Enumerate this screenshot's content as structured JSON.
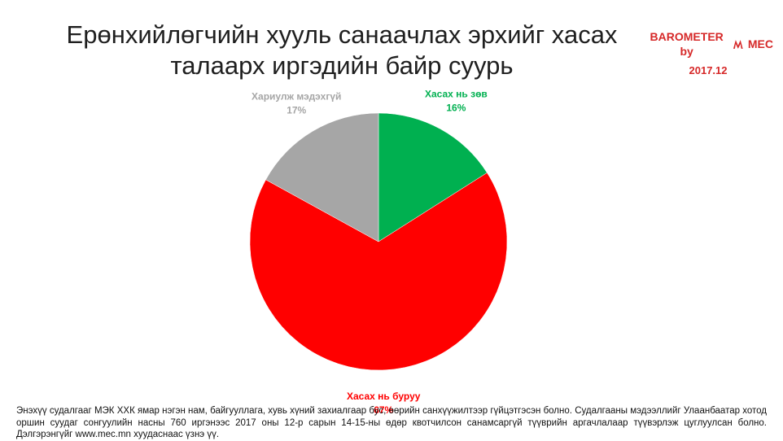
{
  "chart_data": {
    "type": "pie",
    "title_line1": "Ерөнхийлөгчийн хууль санаачлах эрхийг хасах",
    "title_line2": "талаарх иргэдийн байр суурь",
    "slices": [
      {
        "label": "Хасах нь зөв",
        "value": 16,
        "value_text": "16%",
        "color": "#00b050"
      },
      {
        "label": "Хасах нь буруу",
        "value": 67,
        "value_text": "67%",
        "color": "#ff0000"
      },
      {
        "label": "Хариулж мэдэхгүй",
        "value": 17,
        "value_text": "17%",
        "color": "#a6a6a6"
      }
    ]
  },
  "brand": {
    "name": "BAROMETER by",
    "suffix": "MEC",
    "date": "2017.12",
    "color": "#d62828"
  },
  "footnote": "Энэхүү судалгааг МЭК ХХК ямар нэгэн нам, байгууллага, хувь хүний захиалгаар бус, өөрийн санхүүжилтээр гүйцэтгэсэн болно. Судалгааны мэдээллийг Улаанбаатар хотод оршин суудаг сонгуулийн насны 760 иргэнээс 2017 оны 12-р сарын 14-15-ны өдөр квотчилсон санамсаргүй түүврийн аргачлалаар түүвэрлэж цуглуулсан болно. Дэлгэрэнгүйг www.mec.mn хуудаснаас үзнэ үү."
}
